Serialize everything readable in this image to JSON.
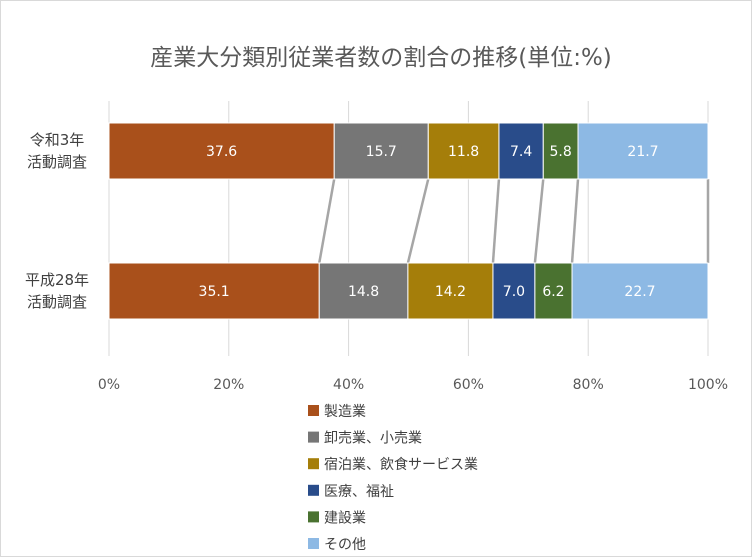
{
  "chart_data": {
    "type": "bar",
    "orientation": "horizontal",
    "stacked": "percent",
    "title": "産業大分類別従業者数の割合の推移(単位:%)",
    "categories": [
      [
        "令和3年",
        "活動調査"
      ],
      [
        "平成28年",
        "活動調査"
      ]
    ],
    "series": [
      {
        "name": "製造業",
        "color": "#A9501B",
        "values": [
          37.6,
          35.1
        ]
      },
      {
        "name": "卸売業、小売業",
        "color": "#767676",
        "values": [
          15.7,
          14.8
        ]
      },
      {
        "name": "宿泊業、飲食サービス業",
        "color": "#A57E0A",
        "values": [
          11.8,
          14.2
        ]
      },
      {
        "name": "医療、福祉",
        "color": "#294C8A",
        "values": [
          7.4,
          7.0
        ]
      },
      {
        "name": "建設業",
        "color": "#4A7230",
        "values": [
          5.8,
          6.2
        ]
      },
      {
        "name": "その他",
        "color": "#8DB9E4",
        "values": [
          21.7,
          22.7
        ]
      }
    ],
    "x_ticks": [
      "0%",
      "20%",
      "40%",
      "60%",
      "80%",
      "100%"
    ],
    "xlim": [
      0,
      100
    ],
    "grid": true,
    "series_lines": true,
    "legend_position": "bottom-left"
  }
}
